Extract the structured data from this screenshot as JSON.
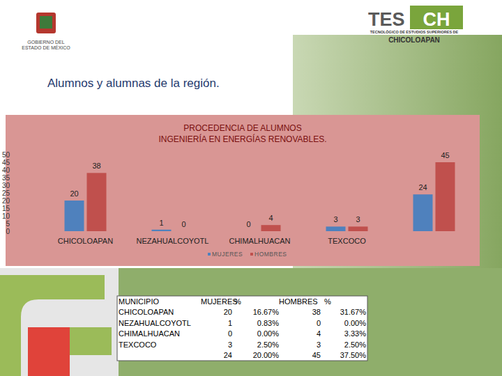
{
  "header": {
    "gov_logo": [
      "GOBIERNO DEL",
      "ESTADO DE MÉXICO"
    ],
    "tesch_logo": {
      "mark_a": "TES",
      "mark_b": "CH",
      "line1": "TECNOLÓGICO DE ESTUDIOS SUPERIORES DE",
      "line2": "CHICOLOAPAN"
    }
  },
  "heading": "Alumnos y alumnas de la región.",
  "chart_data": {
    "type": "bar",
    "title": "PROCEDENCIA DE ALUMNOS",
    "subtitle": "INGENIERÍA EN ENERGÍAS RENOVABLES.",
    "categories": [
      "CHICOLOAPAN",
      "NEZAHUALCOYOTL",
      "CHIMALHUACAN",
      "TEXCOCO",
      null
    ],
    "series": [
      {
        "name": "MUJERES",
        "color": "#4f81bd",
        "values": [
          20,
          1,
          0,
          3,
          24
        ]
      },
      {
        "name": "HOMBRES",
        "color": "#c0504d",
        "values": [
          38,
          0,
          4,
          3,
          45
        ]
      }
    ],
    "ylim": [
      0,
      50
    ],
    "yticks": [
      0,
      5,
      10,
      15,
      20,
      25,
      30,
      35,
      40,
      45,
      50
    ],
    "grid": false,
    "legend": "bottom",
    "data_labels": true
  },
  "table": {
    "header": [
      "MUNICIPIO",
      "MUJERES",
      "%",
      "HOMBRES",
      "%"
    ],
    "rows": [
      [
        "CHICOLOAPAN",
        "20",
        "16.67%",
        "38",
        "31.67%"
      ],
      [
        "NEZAHUALCOYOTL",
        "1",
        "0.83%",
        "0",
        "0.00%"
      ],
      [
        "CHIMALHUACAN",
        "0",
        "0.00%",
        "4",
        "3.33%"
      ],
      [
        "TEXCOCO",
        "3",
        "2.50%",
        "3",
        "2.50%"
      ],
      [
        null,
        "24",
        "20.00%",
        "45",
        "37.50%"
      ]
    ]
  }
}
